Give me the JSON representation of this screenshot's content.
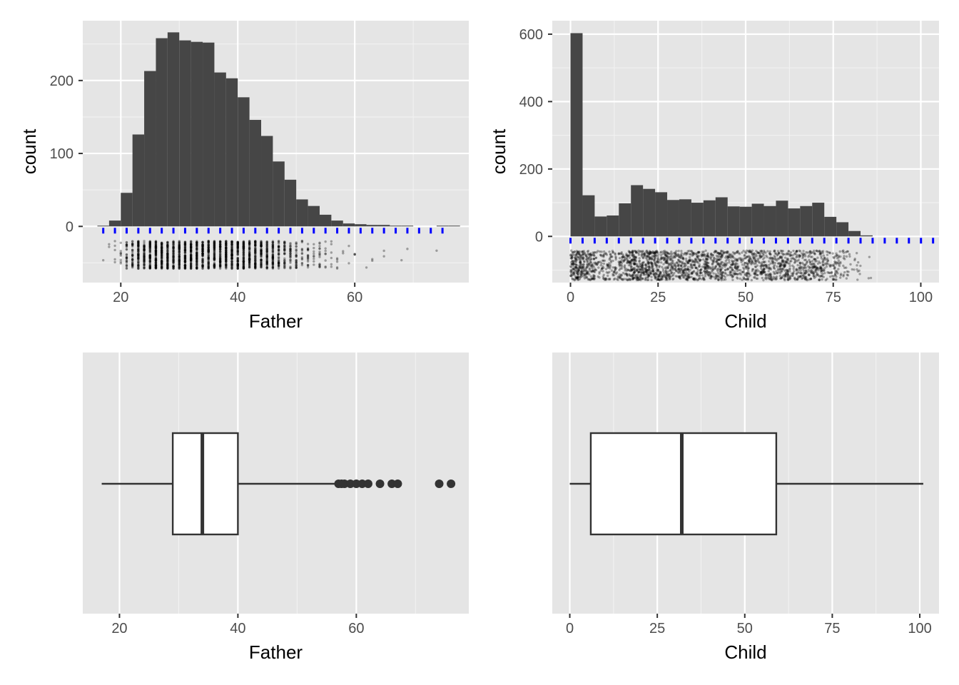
{
  "chart_data": [
    {
      "id": "father-hist",
      "type": "bar",
      "subtype": "histogram",
      "xlabel": "Father",
      "ylabel": "count",
      "xlim": [
        13.5,
        79.5
      ],
      "ylim": [
        -77,
        282
      ],
      "x_ticks": [
        20,
        40,
        60
      ],
      "y_ticks": [
        0,
        100,
        200
      ],
      "grid": true,
      "binwidth": 2,
      "bin_start": 16,
      "values": [
        1,
        8,
        46,
        126,
        213,
        258,
        266,
        255,
        253,
        252,
        211,
        203,
        177,
        146,
        124,
        89,
        64,
        37,
        28,
        16,
        8,
        4,
        3,
        2,
        2,
        1,
        1,
        0,
        0,
        1,
        1
      ],
      "rug_color": "#0000ff",
      "rug_x": [
        17,
        19,
        21,
        23,
        25,
        27,
        29,
        31,
        33,
        35,
        37,
        39,
        41,
        43,
        45,
        47,
        49,
        51,
        53,
        55,
        57,
        59,
        61,
        63,
        65,
        67,
        69,
        71,
        73,
        75
      ],
      "jitter_range": [
        17,
        76
      ],
      "jitter_y": [
        -58,
        -20
      ]
    },
    {
      "id": "child-hist",
      "type": "bar",
      "subtype": "histogram",
      "xlabel": "Child",
      "ylabel": "count",
      "xlim": [
        -5.2,
        105.2
      ],
      "ylim": [
        -137,
        640
      ],
      "x_ticks": [
        0,
        25,
        50,
        75,
        100
      ],
      "y_ticks": [
        0,
        200,
        400,
        600
      ],
      "grid": true,
      "binwidth": 3.45,
      "bin_start": 0,
      "values": [
        603,
        122,
        59,
        62,
        98,
        152,
        141,
        131,
        108,
        110,
        100,
        107,
        116,
        89,
        88,
        97,
        90,
        106,
        83,
        90,
        100,
        58,
        42,
        16,
        3,
        0,
        0
      ],
      "rug_color": "#0000ff",
      "rug_x": [
        0,
        3.45,
        6.9,
        10.35,
        13.8,
        17.25,
        20.7,
        24.15,
        27.6,
        31.05,
        34.5,
        37.95,
        41.4,
        44.85,
        48.3,
        51.75,
        55.2,
        58.65,
        62.1,
        65.55,
        69,
        72.45,
        75.9,
        79.35,
        82.8,
        86.25,
        89.7,
        93.15,
        96.6,
        100.05,
        103.5
      ],
      "jitter_range": [
        0,
        96
      ],
      "jitter_y": [
        -130,
        -42
      ]
    },
    {
      "id": "father-box",
      "type": "boxplot",
      "xlabel": "Father",
      "xlim": [
        13.8,
        79
      ],
      "x_ticks": [
        20,
        40,
        60
      ],
      "grid": true,
      "whisker_low": 17,
      "q1": 29,
      "median": 34,
      "q3": 40,
      "whisker_high": 56.5,
      "outliers": [
        57,
        57.5,
        58,
        59,
        60,
        61,
        62,
        64,
        66,
        67,
        74,
        76
      ]
    },
    {
      "id": "child-box",
      "type": "boxplot",
      "xlabel": "Child",
      "xlim": [
        -5,
        105.5
      ],
      "x_ticks": [
        0,
        25,
        50,
        75,
        100
      ],
      "grid": true,
      "whisker_low": 0,
      "q1": 6,
      "median": 32,
      "q3": 59,
      "whisker_high": 101,
      "outliers": []
    }
  ]
}
